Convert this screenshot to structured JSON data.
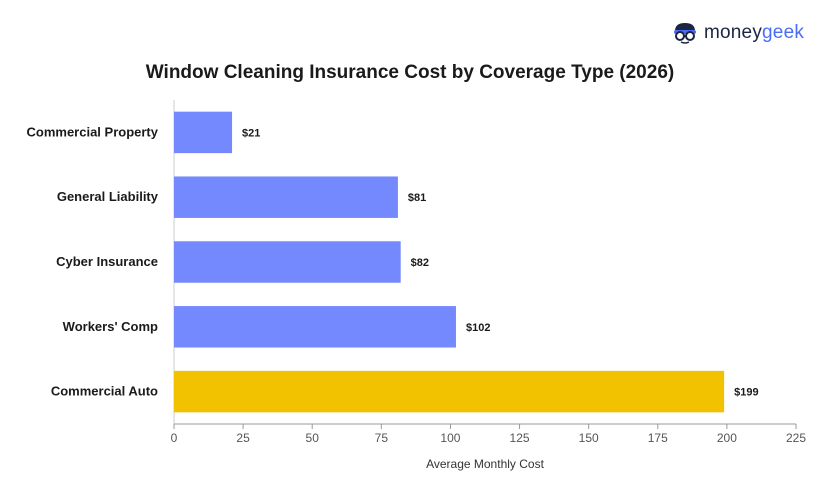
{
  "brand": {
    "part1": "money",
    "part2": "geek",
    "icon": "moneygeek-mascot-icon"
  },
  "colors": {
    "default_bar": "#7589ff",
    "highlight_bar": "#f2c200",
    "axis": "#999999",
    "text": "#1a1a1a"
  },
  "chart_data": {
    "type": "bar",
    "orientation": "horizontal",
    "title": "Window Cleaning Insurance Cost by Coverage Type (2026)",
    "xlabel": "Average Monthly Cost",
    "ylabel": "",
    "categories": [
      "Commercial Property",
      "General Liability",
      "Cyber Insurance",
      "Workers' Comp",
      "Commercial Auto"
    ],
    "values": [
      21,
      81,
      82,
      102,
      199
    ],
    "data_labels": [
      "$21",
      "$81",
      "$82",
      "$102",
      "$199"
    ],
    "highlight": "Commercial Auto",
    "xlim": [
      0,
      225
    ],
    "xticks": [
      0,
      25,
      50,
      75,
      100,
      125,
      150,
      175,
      200,
      225
    ],
    "grid": false,
    "legend": "none"
  }
}
